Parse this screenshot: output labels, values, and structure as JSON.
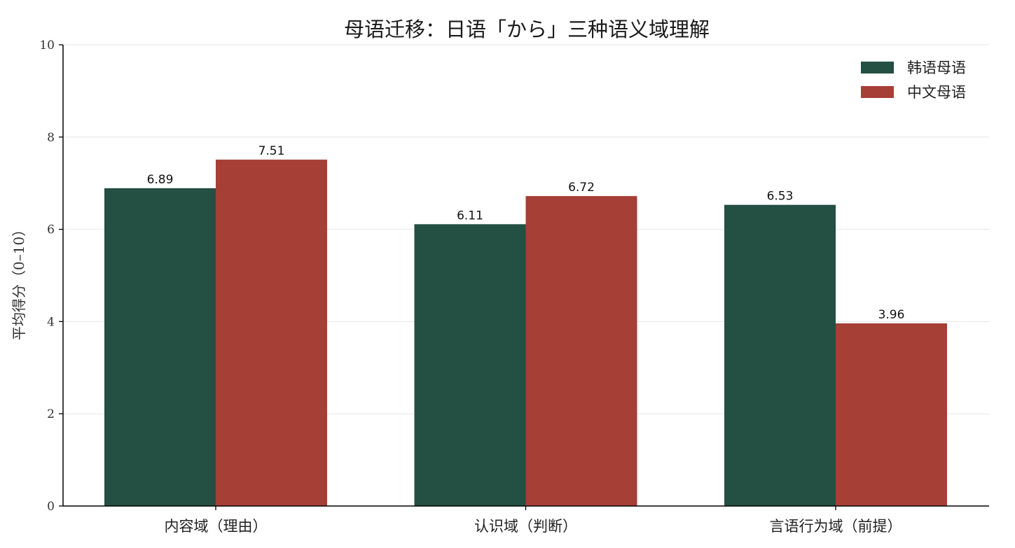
{
  "chart_data": {
    "type": "bar",
    "title": "母语迁移：日语「から」三种语义域理解",
    "xlabel": "",
    "ylabel": "平均得分（0–10）",
    "ylim": [
      0,
      10
    ],
    "yticks": [
      "0",
      "2",
      "4",
      "6",
      "8",
      "10"
    ],
    "grid": "horizontal",
    "legend_position": "top-right",
    "categories": [
      "内容域（理由）",
      "认识域（判断）",
      "言语行为域（前提）"
    ],
    "series": [
      {
        "name": "韩语母语",
        "color": "#244f43",
        "values": [
          6.89,
          6.11,
          6.53
        ],
        "labels": [
          "6.89",
          "6.11",
          "6.53"
        ]
      },
      {
        "name": "中文母语",
        "color": "#a63f36",
        "values": [
          7.51,
          6.72,
          3.96
        ],
        "labels": [
          "7.51",
          "6.72",
          "3.96"
        ]
      }
    ]
  }
}
